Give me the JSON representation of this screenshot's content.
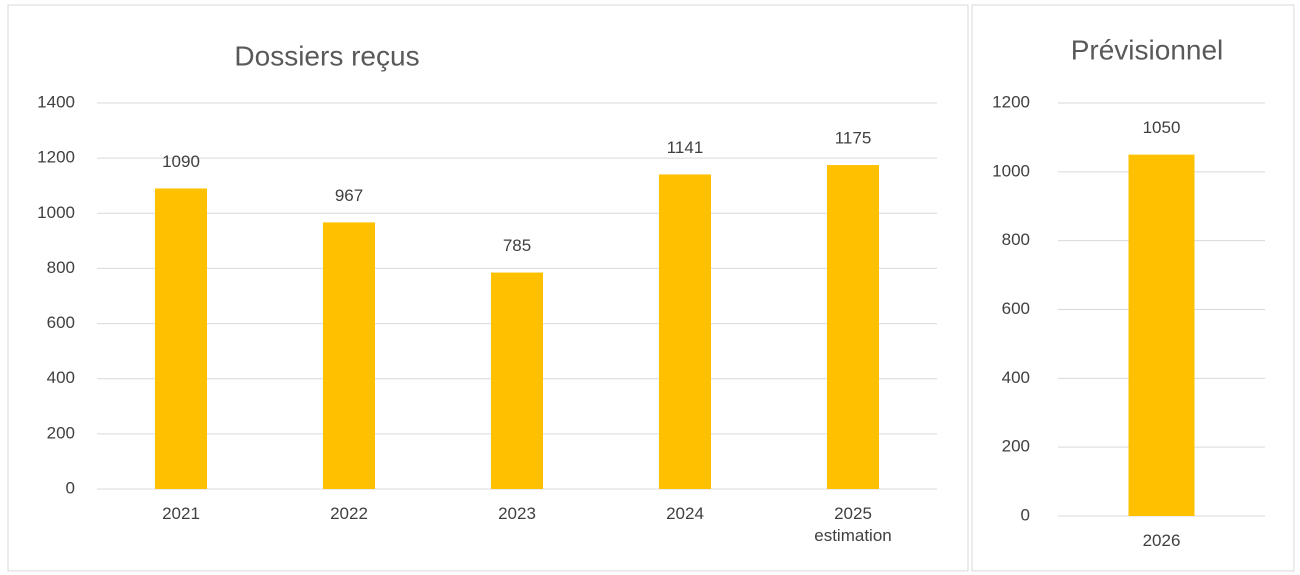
{
  "chart_data": [
    {
      "type": "bar",
      "title": "Dossiers reçus",
      "categories": [
        "2021",
        "2022",
        "2023",
        "2024",
        "2025\nestimation"
      ],
      "values": [
        1090,
        967,
        785,
        1141,
        1175
      ],
      "color": "#ffc000",
      "ylim": [
        0,
        1400
      ],
      "yticks": [
        0,
        200,
        400,
        600,
        800,
        1000,
        1200,
        1400
      ],
      "grid": true
    },
    {
      "type": "bar",
      "title": "Prévisionnel",
      "categories": [
        "2026"
      ],
      "values": [
        1050
      ],
      "color": "#ffc000",
      "ylim": [
        0,
        1200
      ],
      "yticks": [
        0,
        200,
        400,
        600,
        800,
        1000,
        1200
      ],
      "grid": true
    }
  ]
}
